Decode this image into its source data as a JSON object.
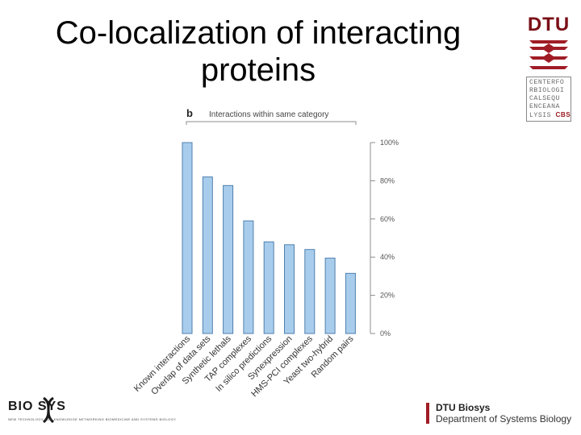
{
  "slide": {
    "title_line1": "Co-localization of interacting",
    "title_line2": "proteins"
  },
  "logos": {
    "dtu_text": "DTU",
    "cbs_lines": [
      "CENTERFO",
      "RBIOLOGI",
      "CALSEQU",
      "ENCEANA"
    ],
    "cbs_last_prefix": "LYSIS ",
    "cbs_last_accent": "CBS",
    "biosys_word": "BIO SYS",
    "biosys_tagline": "NEW TECHNOLOGY FOR KNOWLEDGE NETWORKING BIOMEDICINE AND SYSTEMS BIOLOGY",
    "dtu_biosys_line1": "DTU Biosys",
    "dtu_biosys_line2": "Department of Systems Biology"
  },
  "colors": {
    "bar_fill": "#a8cdec",
    "bar_stroke": "#4f7fae",
    "axis": "#8c8c8c",
    "dtu_red": "#a01c25"
  },
  "chart_data": {
    "type": "bar",
    "panel_label": "b",
    "title": "Interactions within same category",
    "categories": [
      "Known interactions",
      "Overlap of data sets",
      "Synthetic lethals",
      "TAP complexes",
      "In silico predictions",
      "Synexpression",
      "HMS-PCI complexes",
      "Yeast two-hybrid",
      "Random pairs"
    ],
    "values": [
      100,
      82,
      77.5,
      59,
      48,
      46.5,
      44,
      39.5,
      31.5
    ],
    "ylim": [
      0,
      100
    ],
    "yticks": [
      0,
      20,
      40,
      60,
      80,
      100
    ],
    "ytick_labels": [
      "0%",
      "20%",
      "40%",
      "60%",
      "80%",
      "100%"
    ],
    "y_axis_position": "right",
    "xlabel": "",
    "ylabel": "",
    "grid": false
  }
}
